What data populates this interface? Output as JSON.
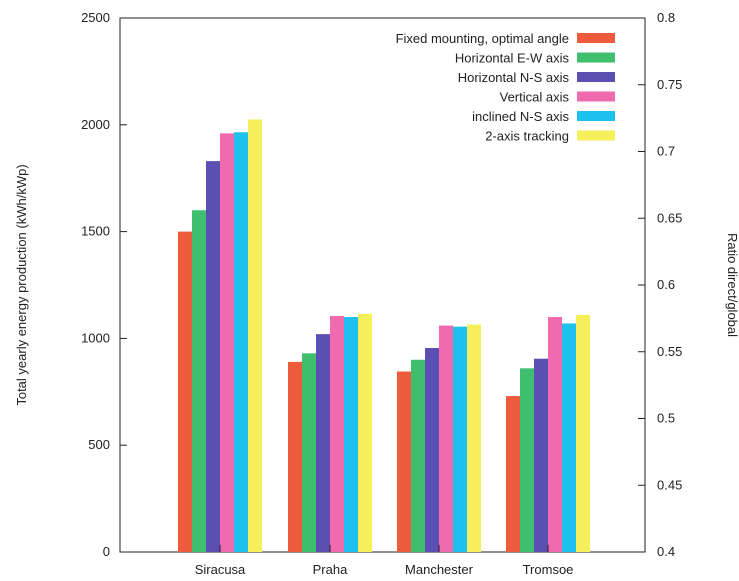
{
  "chart_data": {
    "type": "bar",
    "title": "",
    "categories": [
      "Siracusa",
      "Praha",
      "Manchester",
      "Tromsoe"
    ],
    "series": [
      {
        "name": "Fixed mounting, optimal angle",
        "color": "#ee5a3c",
        "values": [
          1500,
          890,
          845,
          730
        ]
      },
      {
        "name": "Horizontal E-W axis",
        "color": "#3fbf6e",
        "values": [
          1600,
          930,
          900,
          860
        ]
      },
      {
        "name": "Horizontal N-S axis",
        "color": "#5b4fb3",
        "values": [
          1830,
          1020,
          955,
          905
        ]
      },
      {
        "name": "Vertical axis",
        "color": "#f06ab0",
        "values": [
          1960,
          1105,
          1060,
          1100
        ]
      },
      {
        "name": "inclined N-S axis",
        "color": "#1ec0ee",
        "values": [
          1965,
          1100,
          1055,
          1070
        ]
      },
      {
        "name": "2-axis tracking",
        "color": "#f5ef5a",
        "values": [
          2025,
          1115,
          1065,
          1110
        ]
      }
    ],
    "ylabel": "Total yearly energy production (kWh/kWp)",
    "ylim": [
      0,
      2500
    ],
    "yticks": [
      "0",
      "500",
      "1000",
      "1500",
      "2000",
      "2500"
    ],
    "y2label": "Ratio direct/global",
    "y2lim": [
      0.4,
      0.8
    ],
    "y2ticks": [
      "0.4",
      "0.45",
      "0.5",
      "0.55",
      "0.6",
      "0.65",
      "0.7",
      "0.75",
      "0.8"
    ],
    "grid": false,
    "legend_position": "top-right"
  }
}
